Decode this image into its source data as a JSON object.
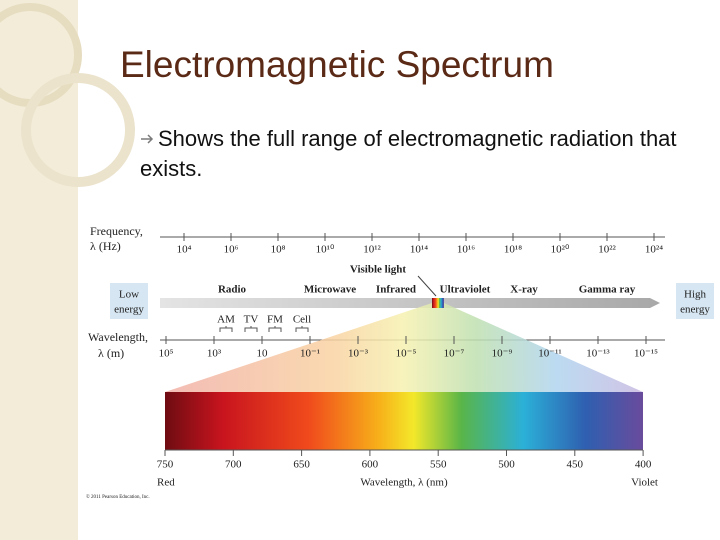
{
  "slide": {
    "title": "Electromagnetic Spectrum",
    "bullet": "Shows the full range of electromagnetic radiation that exists.",
    "diagram": {
      "frequency_label": [
        "Frequency,",
        "λ (Hz)"
      ],
      "frequency_ticks": [
        "10⁴",
        "10⁶",
        "10⁸",
        "10¹⁰",
        "10¹²",
        "10¹⁴",
        "10¹⁶",
        "10¹⁸",
        "10²⁰",
        "10²²",
        "10²⁴"
      ],
      "visible_light": "Visible light",
      "bands": [
        "Radio",
        "Microwave",
        "Infrared",
        "Ultraviolet",
        "X-ray",
        "Gamma ray"
      ],
      "low_energy": [
        "Low",
        "energy"
      ],
      "high_energy": [
        "High",
        "energy"
      ],
      "broadcast": [
        "AM",
        "TV",
        "FM",
        "Cell"
      ],
      "wavelength_label": [
        "Wavelength,",
        "λ (m)"
      ],
      "wavelength_ticks": [
        "10⁵",
        "10³",
        "10",
        "10⁻¹",
        "10⁻³",
        "10⁻⁵",
        "10⁻⁷",
        "10⁻⁹",
        "10⁻¹¹",
        "10⁻¹³",
        "10⁻¹⁵"
      ],
      "nm_ticks": [
        "750",
        "700",
        "650",
        "600",
        "550",
        "500",
        "450",
        "400"
      ],
      "red": "Red",
      "violet": "Violet",
      "nm_axis": "Wavelength, λ (nm)",
      "credit": "© 2011 Pearson Education, Inc."
    }
  }
}
